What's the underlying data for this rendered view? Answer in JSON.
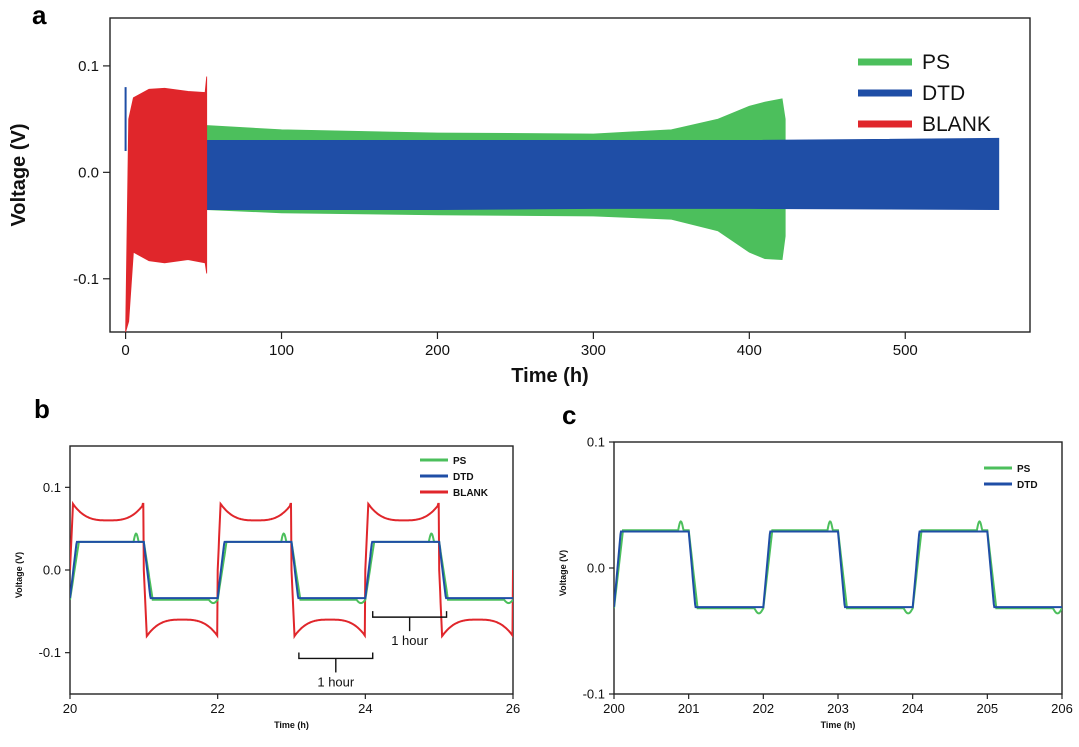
{
  "panels": {
    "a": "a",
    "b": "b",
    "c": "c"
  },
  "colors": {
    "PS": "#4cbf5c",
    "DTD": "#1f4ea6",
    "BLANK": "#e0262b"
  },
  "chart_data": [
    {
      "id": "a",
      "type": "line",
      "xlabel": "Time (h)",
      "ylabel": "Voltage (V)",
      "xlim": [
        -10,
        580
      ],
      "ylim": [
        -0.15,
        0.145
      ],
      "xticks": [
        "0",
        "100",
        "200",
        "300",
        "400",
        "500"
      ],
      "xtick_values": [
        0,
        100,
        200,
        300,
        400,
        500
      ],
      "yticks": [
        "-0.1",
        "0.0",
        "0.1"
      ],
      "ytick_values": [
        -0.1,
        0.0,
        0.1
      ],
      "legend_position": "top-right",
      "series": [
        {
          "name": "PS",
          "color": "#4cbf5c",
          "envelope_upper": [
            [
              52,
              0.044
            ],
            [
              100,
              0.04
            ],
            [
              200,
              0.037
            ],
            [
              300,
              0.036
            ],
            [
              350,
              0.04
            ],
            [
              380,
              0.05
            ],
            [
              400,
              0.062
            ],
            [
              410,
              0.066
            ],
            [
              421,
              0.069
            ],
            [
              423,
              0.05
            ]
          ],
          "envelope_lower": [
            [
              52,
              -0.035
            ],
            [
              100,
              -0.038
            ],
            [
              200,
              -0.04
            ],
            [
              300,
              -0.041
            ],
            [
              350,
              -0.044
            ],
            [
              380,
              -0.055
            ],
            [
              400,
              -0.075
            ],
            [
              410,
              -0.081
            ],
            [
              421,
              -0.082
            ],
            [
              423,
              -0.06
            ]
          ]
        },
        {
          "name": "DTD",
          "color": "#1f4ea6",
          "envelope_upper": [
            [
              52,
              0.03
            ],
            [
              200,
              0.03
            ],
            [
              300,
              0.03
            ],
            [
              400,
              0.03
            ],
            [
              560,
              0.032
            ]
          ],
          "envelope_lower": [
            [
              52,
              -0.035
            ],
            [
              200,
              -0.035
            ],
            [
              300,
              -0.034
            ],
            [
              400,
              -0.034
            ],
            [
              560,
              -0.035
            ]
          ]
        },
        {
          "name": "BLANK",
          "color": "#e0262b",
          "envelope_upper": [
            [
              2,
              0.05
            ],
            [
              5,
              0.07
            ],
            [
              15,
              0.078
            ],
            [
              25,
              0.079
            ],
            [
              40,
              0.076
            ],
            [
              51,
              0.075
            ],
            [
              52,
              0.09
            ]
          ],
          "envelope_lower": [
            [
              0,
              -0.15
            ],
            [
              2,
              -0.14
            ],
            [
              5,
              -0.075
            ],
            [
              15,
              -0.083
            ],
            [
              25,
              -0.085
            ],
            [
              40,
              -0.082
            ],
            [
              51,
              -0.085
            ],
            [
              52,
              -0.095
            ]
          ]
        }
      ]
    },
    {
      "id": "b",
      "type": "line",
      "xlabel": "Time (h)",
      "ylabel": "Voltage (V)",
      "xlim": [
        20,
        26
      ],
      "ylim": [
        -0.15,
        0.15
      ],
      "xticks": [
        "20",
        "22",
        "24",
        "26"
      ],
      "xtick_values": [
        20,
        22,
        24,
        26
      ],
      "yticks": [
        "-0.1",
        "0.0",
        "0.1"
      ],
      "ytick_values": [
        -0.1,
        0.0,
        0.1
      ],
      "legend_position": "top-right",
      "annotations": [
        "1 hour",
        "1 hour"
      ],
      "period_h": 2.0,
      "phase_start": 20.0,
      "series": [
        {
          "name": "PS",
          "color": "#4cbf5c",
          "plateau_high": 0.034,
          "plateau_low": -0.036,
          "spike": 0.044
        },
        {
          "name": "DTD",
          "color": "#1f4ea6",
          "plateau_high": 0.034,
          "plateau_low": -0.034
        },
        {
          "name": "BLANK",
          "color": "#e0262b",
          "plateau_high": 0.06,
          "plateau_low": -0.06,
          "peak": 0.08
        }
      ]
    },
    {
      "id": "c",
      "type": "line",
      "xlabel": "Time (h)",
      "ylabel": "Voltage (V)",
      "xlim": [
        200,
        206
      ],
      "ylim": [
        -0.1,
        0.1
      ],
      "xticks": [
        "200",
        "201",
        "202",
        "203",
        "204",
        "205",
        "206"
      ],
      "xtick_values": [
        200,
        201,
        202,
        203,
        204,
        205,
        206
      ],
      "yticks": [
        "-0.1",
        "0.0",
        "0.1"
      ],
      "ytick_values": [
        -0.1,
        0.0,
        0.1
      ],
      "legend_position": "top-right",
      "period_h": 2.0,
      "phase_start": 200.0,
      "series": [
        {
          "name": "PS",
          "color": "#4cbf5c",
          "plateau_high": 0.03,
          "plateau_low": -0.032,
          "spike": 0.037
        },
        {
          "name": "DTD",
          "color": "#1f4ea6",
          "plateau_high": 0.029,
          "plateau_low": -0.031
        }
      ]
    }
  ]
}
